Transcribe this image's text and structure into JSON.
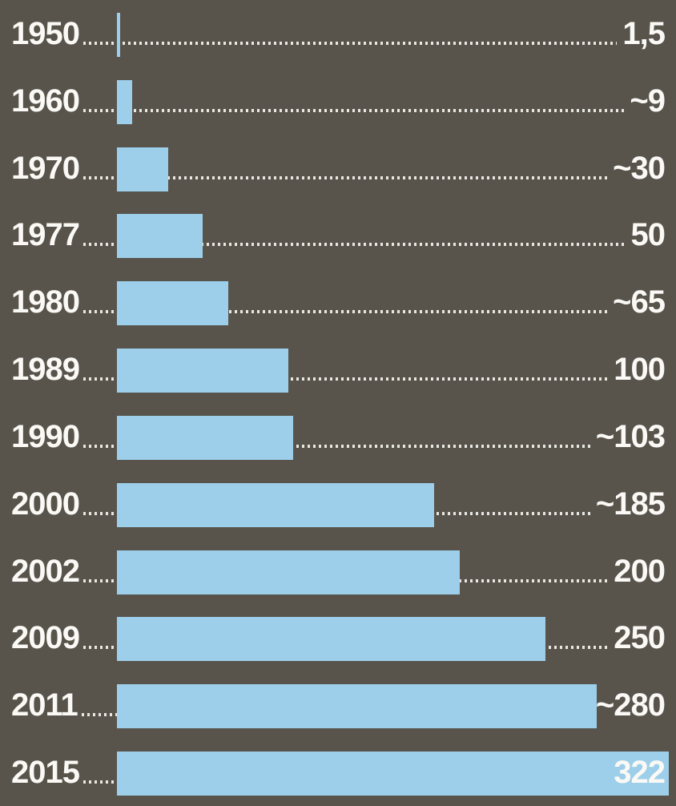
{
  "chart_data": {
    "type": "bar",
    "orientation": "horizontal",
    "categories": [
      "1950",
      "1960",
      "1970",
      "1977",
      "1980",
      "1989",
      "1990",
      "2000",
      "2002",
      "2009",
      "2011",
      "2015"
    ],
    "values": [
      1.5,
      9,
      30,
      50,
      65,
      100,
      103,
      185,
      200,
      250,
      280,
      322
    ],
    "value_labels": [
      "1,5",
      "~9",
      "~30",
      "50",
      "~65",
      "100",
      "~103",
      "~185",
      "200",
      "250",
      "~280",
      "322"
    ],
    "xlim": [
      0,
      322
    ],
    "grid": "off",
    "legend": "none",
    "rows": [
      {
        "year": "1950",
        "value": 1.5,
        "value_label": "1,5"
      },
      {
        "year": "1960",
        "value": 9,
        "value_label": "~9"
      },
      {
        "year": "1970",
        "value": 30,
        "value_label": "~30"
      },
      {
        "year": "1977",
        "value": 50,
        "value_label": "50"
      },
      {
        "year": "1980",
        "value": 65,
        "value_label": "~65"
      },
      {
        "year": "1989",
        "value": 100,
        "value_label": "100"
      },
      {
        "year": "1990",
        "value": 103,
        "value_label": "~103"
      },
      {
        "year": "2000",
        "value": 185,
        "value_label": "~185"
      },
      {
        "year": "2002",
        "value": 200,
        "value_label": "200"
      },
      {
        "year": "2009",
        "value": 250,
        "value_label": "250"
      },
      {
        "year": "2011",
        "value": 280,
        "value_label": "~280"
      },
      {
        "year": "2015",
        "value": 322,
        "value_label": "322"
      }
    ],
    "colors": {
      "bar": "#9dcfea",
      "background": "#58544c",
      "label_text": "#fbf9f5",
      "leader_dots": "#e9e7e1"
    }
  }
}
